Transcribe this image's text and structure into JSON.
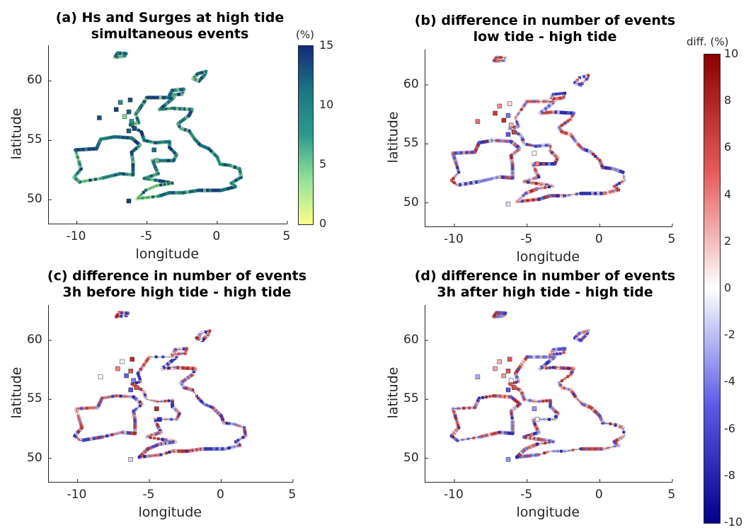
{
  "chart_data": [
    {
      "type": "map",
      "title_line1": "(a) Hs and Surges at high tide",
      "title_line2": "simultaneous events",
      "xlabel": "longitude",
      "ylabel": "latitude",
      "xlim": [
        -12,
        5
      ],
      "ylim": [
        48,
        63
      ],
      "xticks": [
        "-10",
        "-5",
        "0",
        "5"
      ],
      "yticks": [
        "50",
        "55",
        "60"
      ],
      "colormap": "yellow-green-blue",
      "colorbar_label": "(%)",
      "colorbar_range": [
        0,
        15
      ],
      "colorbar_ticks": [
        "0",
        "5",
        "10",
        "15"
      ]
    },
    {
      "type": "map",
      "title_line1": "(b) difference in number of events",
      "title_line2": "low tide - high tide",
      "xlabel": "longitude",
      "ylabel": "latitude",
      "xlim": [
        -12,
        5
      ],
      "ylim": [
        48,
        63
      ],
      "xticks": [
        "-10",
        "-5",
        "0",
        "5"
      ],
      "yticks": [
        "50",
        "55",
        "60"
      ],
      "colormap": "blue-white-red"
    },
    {
      "type": "map",
      "title_line1": "(c) difference in number of events",
      "title_line2": "3h before high tide - high tide",
      "xlabel": "longitude",
      "ylabel": "latitude",
      "xlim": [
        -12,
        5
      ],
      "ylim": [
        48,
        63
      ],
      "xticks": [
        "-10",
        "-5",
        "0",
        "5"
      ],
      "yticks": [
        "50",
        "55",
        "60"
      ],
      "colormap": "blue-white-red"
    },
    {
      "type": "map",
      "title_line1": "(d) difference in number of events",
      "title_line2": "3h after high tide - high tide",
      "xlabel": "longitude",
      "ylabel": "latitude",
      "xlim": [
        -12,
        5
      ],
      "ylim": [
        48,
        63
      ],
      "xticks": [
        "-10",
        "-5",
        "0",
        "5"
      ],
      "yticks": [
        "50",
        "55",
        "60"
      ],
      "colormap": "blue-white-red"
    }
  ],
  "shared_colorbar": {
    "label": "diff. (%)",
    "range": [
      -10,
      10
    ],
    "ticks": [
      "10",
      "8",
      "6",
      "4",
      "2",
      "0",
      "-2",
      "-4",
      "-6",
      "-8",
      "-10"
    ],
    "colors": [
      "#00008b",
      "#5a5ae6",
      "#ffffff",
      "#e65a5a",
      "#8b0000"
    ]
  },
  "colormap_a": [
    "#fdfd8a",
    "#93e29b",
    "#2e9a8c",
    "#1a7782",
    "#142a7c"
  ]
}
